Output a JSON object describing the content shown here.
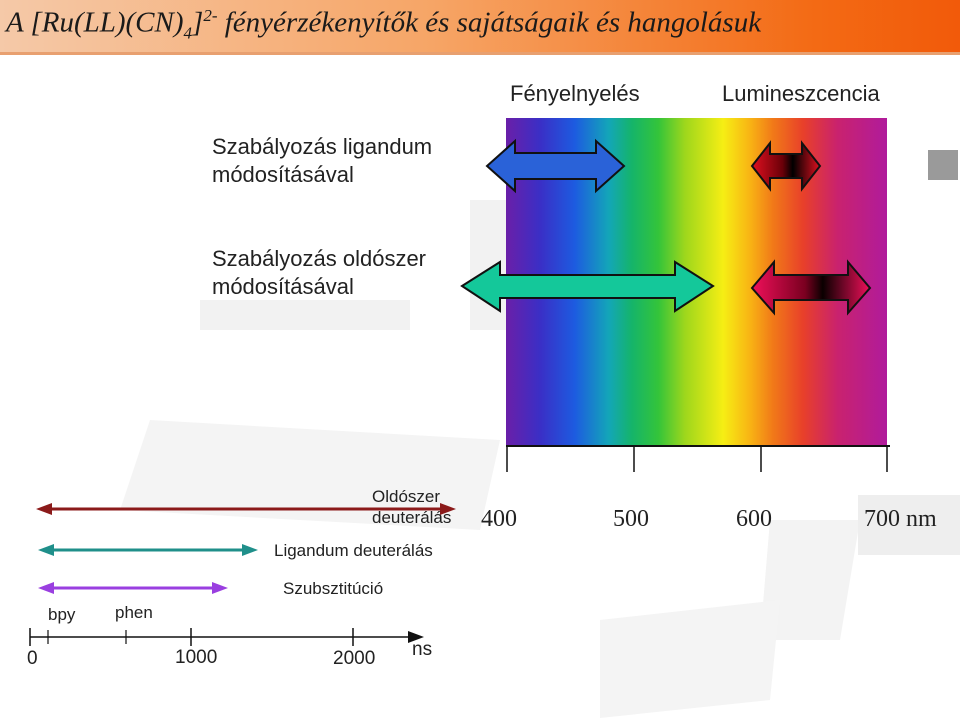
{
  "title": {
    "main": "A [Ru(LL)(CN)",
    "sub": "4",
    "close": "]",
    "sup": "2-",
    "rest": " fényérzékenyítők és sajátságaik és hangolásuk"
  },
  "headers": {
    "absorption": "Fényelnyelés",
    "luminescence": "Lumineszcencia"
  },
  "rows": {
    "ligand": {
      "line1": "Szabályozás ligandum",
      "line2": "módosításával"
    },
    "solvent": {
      "line1": "Szabályozás oldószer",
      "line2": "módosításával"
    }
  },
  "wavelength_axis": {
    "ticks": [
      "400",
      "500",
      "600"
    ],
    "last_tick": "700 nm"
  },
  "time_arrows": {
    "solvent_deuteration": {
      "line1": "Oldószer",
      "line2": "deuterálás",
      "color": "#8b1a1a"
    },
    "ligand_deuteration": {
      "label": "Ligandum deuterálás",
      "color": "#1f8f8a"
    },
    "substitution": {
      "label": "Szubsztitúció",
      "color": "#9a3fe0"
    }
  },
  "time_axis": {
    "marker_labels": [
      "bpy",
      "phen"
    ],
    "tick_labels": [
      "0",
      "1000",
      "2000"
    ],
    "unit": "ns"
  },
  "colors": {
    "abs_ligand_arrow": "#2a62d8",
    "abs_solvent_arrow": "#14c89a",
    "lum_ligand_arrow": "#c8102e",
    "lum_solvent_arrow": "#e8105a"
  }
}
